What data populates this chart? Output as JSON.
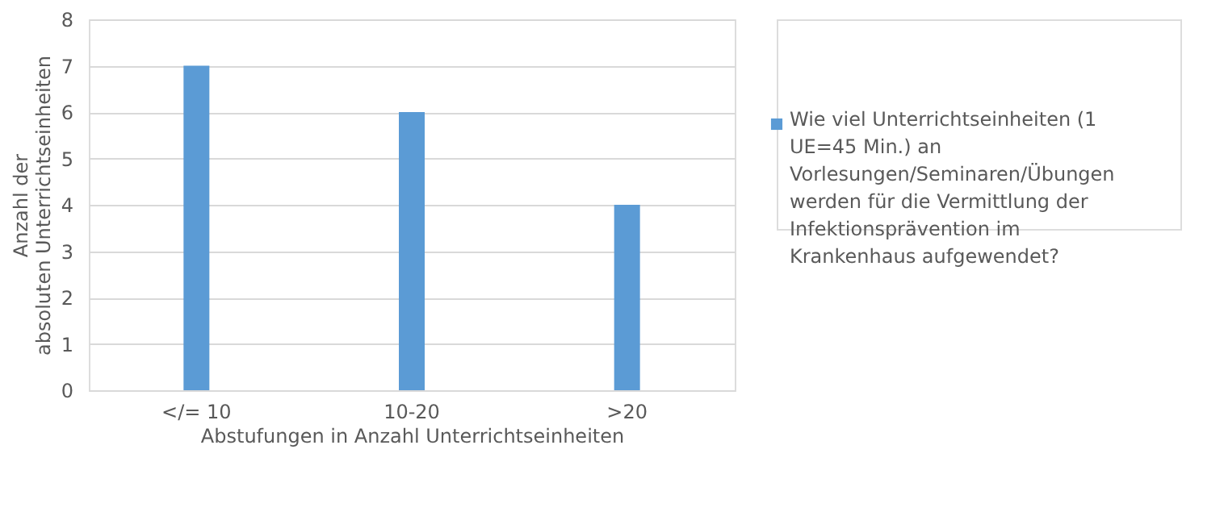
{
  "chart_data": {
    "type": "bar",
    "xlabel": "Abstufungen in Anzahl Unterrichtseinheiten",
    "ylabel": "Anzahl der absoluten Unterrichtseinheiten",
    "categories": [
      "</= 10",
      "10-20",
      ">20"
    ],
    "series": [
      {
        "name": "Wie viel Unterrichtseinheiten (1 UE=45 Min.) an Vorlesungen/Seminaren/Übungen werden für die Vermittlung der Infektionsprävention im Krankenhaus aufgewendet?",
        "color": "#5b9bd5",
        "values": [
          7,
          6,
          4
        ]
      }
    ],
    "ylim": [
      0,
      8
    ],
    "yticks": [
      0,
      1,
      2,
      3,
      4,
      5,
      6,
      7,
      8
    ],
    "grid": "y",
    "legend": "right"
  }
}
